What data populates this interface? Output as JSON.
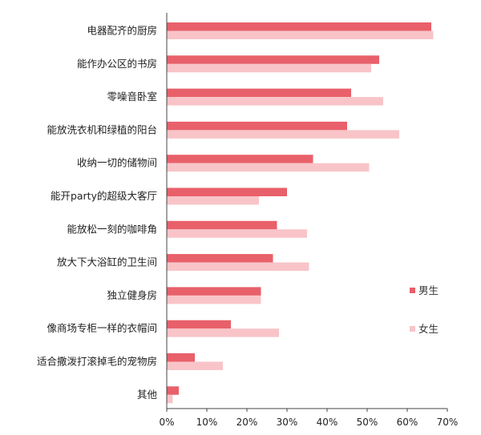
{
  "chart_data": {
    "type": "bar",
    "orientation": "horizontal",
    "categories": [
      "电器配齐的厨房",
      "能作办公区的书房",
      "零噪音卧室",
      "能放洗衣机和绿植的阳台",
      "收纳一切的储物间",
      "能开party的超级大客厅",
      "能放松一刻的咖啡角",
      "放大下大浴缸的卫生间",
      "独立健身房",
      "像商场专柜一样的衣帽间",
      "适合撒泼打滚掉毛的宠物房",
      "其他"
    ],
    "series": [
      {
        "name": "男生",
        "color": "#e8606a",
        "values": [
          66,
          53,
          46,
          45,
          36.5,
          30,
          27.5,
          26.5,
          23.5,
          16,
          7,
          3
        ]
      },
      {
        "name": "女生",
        "color": "#f8c4c8",
        "values": [
          66.5,
          51,
          54,
          58,
          50.5,
          23,
          35,
          35.5,
          23.5,
          28,
          14,
          1.5
        ]
      }
    ],
    "x_ticks": [
      "0%",
      "10%",
      "20%",
      "30%",
      "40%",
      "50%",
      "60%",
      "70%"
    ],
    "xlim": [
      0,
      70
    ],
    "grid": false,
    "legend_position": "right"
  }
}
